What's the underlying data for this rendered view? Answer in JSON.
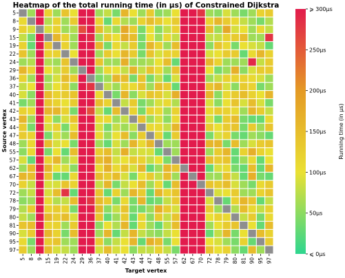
{
  "chart_data": {
    "type": "heatmap",
    "title": "Heatmap of the total running time (in μs) of Constrained Dijkstra",
    "xlabel": "Target vertex",
    "ylabel": "Source vertex",
    "colorbar_label": "Running time (in μs)",
    "colorbar_ticks": [
      "⩽ 0μs",
      "50μs",
      "100μs",
      "150μs",
      "200μs",
      "250μs",
      "⩾ 300μs"
    ],
    "colorbar_tick_values": [
      0,
      50,
      100,
      150,
      200,
      250,
      300
    ],
    "vmin": 0,
    "vmax": 300,
    "colors": {
      "min": "#2ed68f",
      "low": "#eae033",
      "mid": "#e49a25",
      "high": "#e21b4c",
      "diagonal": "#8e8e8e"
    },
    "x_categories": [
      "5",
      "8",
      "9",
      "15",
      "19",
      "22",
      "24",
      "29",
      "36",
      "37",
      "40",
      "41",
      "42",
      "43",
      "44",
      "47",
      "48",
      "55",
      "57",
      "62",
      "67",
      "70",
      "72",
      "78",
      "79",
      "80",
      "81",
      "90",
      "95",
      "97"
    ],
    "y_categories": [
      "5",
      "8",
      "9",
      "15",
      "19",
      "22",
      "24",
      "29",
      "36",
      "37",
      "40",
      "41",
      "42",
      "43",
      "44",
      "47",
      "48",
      "55",
      "57",
      "62",
      "67",
      "70",
      "72",
      "78",
      "79",
      "80",
      "81",
      "90",
      "95",
      "97"
    ],
    "values": [
      [
        null,
        60,
        300,
        120,
        60,
        140,
        100,
        300,
        300,
        60,
        80,
        40,
        160,
        100,
        60,
        130,
        50,
        60,
        100,
        300,
        300,
        280,
        60,
        50,
        90,
        60,
        40,
        60,
        120,
        130
      ],
      [
        110,
        null,
        300,
        70,
        120,
        60,
        130,
        300,
        300,
        120,
        30,
        110,
        70,
        60,
        120,
        150,
        130,
        100,
        130,
        300,
        300,
        300,
        120,
        160,
        130,
        110,
        80,
        60,
        40,
        70
      ],
      [
        120,
        90,
        null,
        90,
        120,
        60,
        70,
        260,
        300,
        150,
        80,
        60,
        180,
        130,
        40,
        100,
        50,
        80,
        120,
        300,
        300,
        300,
        150,
        60,
        180,
        90,
        100,
        60,
        110,
        80
      ],
      [
        80,
        40,
        300,
        null,
        160,
        120,
        60,
        300,
        290,
        60,
        130,
        100,
        170,
        150,
        40,
        100,
        60,
        110,
        80,
        300,
        300,
        300,
        80,
        80,
        120,
        130,
        150,
        60,
        60,
        280
      ],
      [
        120,
        30,
        300,
        140,
        null,
        120,
        60,
        300,
        300,
        160,
        40,
        110,
        80,
        130,
        40,
        160,
        120,
        60,
        150,
        300,
        300,
        300,
        50,
        140,
        110,
        40,
        100,
        90,
        80,
        30
      ],
      [
        140,
        60,
        300,
        120,
        120,
        null,
        100,
        300,
        300,
        60,
        130,
        100,
        160,
        130,
        40,
        140,
        90,
        120,
        120,
        300,
        300,
        300,
        90,
        100,
        130,
        130,
        30,
        110,
        160,
        120
      ],
      [
        60,
        70,
        300,
        70,
        60,
        140,
        null,
        300,
        300,
        140,
        60,
        60,
        170,
        60,
        60,
        70,
        100,
        150,
        30,
        300,
        300,
        300,
        160,
        120,
        60,
        60,
        60,
        290,
        80,
        130
      ],
      [
        160,
        120,
        300,
        100,
        80,
        130,
        60,
        null,
        300,
        60,
        110,
        100,
        80,
        160,
        80,
        140,
        110,
        60,
        140,
        300,
        300,
        300,
        100,
        40,
        60,
        170,
        50,
        90,
        130,
        130
      ],
      [
        120,
        60,
        300,
        60,
        90,
        150,
        130,
        300,
        null,
        40,
        60,
        160,
        150,
        40,
        140,
        40,
        80,
        30,
        90,
        300,
        300,
        300,
        60,
        80,
        120,
        120,
        120,
        110,
        90,
        60
      ],
      [
        80,
        100,
        300,
        70,
        100,
        130,
        50,
        300,
        280,
        null,
        80,
        60,
        120,
        110,
        140,
        60,
        150,
        130,
        30,
        300,
        300,
        300,
        140,
        160,
        90,
        50,
        130,
        120,
        40,
        60
      ],
      [
        90,
        50,
        300,
        150,
        120,
        130,
        140,
        300,
        300,
        110,
        null,
        40,
        160,
        50,
        90,
        140,
        130,
        90,
        170,
        300,
        300,
        300,
        160,
        50,
        110,
        130,
        150,
        120,
        100,
        160
      ],
      [
        40,
        60,
        300,
        140,
        120,
        100,
        130,
        300,
        300,
        150,
        120,
        null,
        80,
        130,
        40,
        60,
        90,
        110,
        70,
        300,
        300,
        300,
        90,
        50,
        100,
        140,
        90,
        150,
        90,
        40
      ],
      [
        120,
        110,
        300,
        160,
        160,
        120,
        40,
        300,
        260,
        80,
        30,
        150,
        null,
        120,
        40,
        120,
        110,
        60,
        120,
        300,
        300,
        300,
        110,
        130,
        120,
        110,
        60,
        160,
        130,
        80
      ],
      [
        160,
        60,
        300,
        110,
        50,
        90,
        140,
        300,
        300,
        110,
        110,
        60,
        80,
        null,
        140,
        60,
        90,
        50,
        110,
        300,
        300,
        300,
        90,
        40,
        130,
        150,
        40,
        30,
        30,
        110
      ],
      [
        130,
        40,
        300,
        90,
        120,
        40,
        110,
        300,
        300,
        90,
        40,
        80,
        60,
        80,
        null,
        110,
        110,
        80,
        160,
        300,
        300,
        300,
        130,
        100,
        130,
        140,
        40,
        130,
        60,
        140
      ],
      [
        130,
        120,
        300,
        40,
        90,
        60,
        150,
        300,
        300,
        110,
        60,
        100,
        150,
        50,
        130,
        null,
        120,
        30,
        130,
        300,
        300,
        300,
        40,
        90,
        120,
        40,
        30,
        60,
        50,
        30
      ],
      [
        60,
        110,
        300,
        150,
        90,
        100,
        40,
        300,
        300,
        60,
        30,
        90,
        60,
        160,
        110,
        160,
        null,
        60,
        60,
        300,
        300,
        300,
        160,
        160,
        40,
        150,
        60,
        90,
        130,
        140
      ],
      [
        50,
        110,
        300,
        40,
        100,
        30,
        150,
        300,
        300,
        130,
        150,
        80,
        170,
        80,
        90,
        90,
        30,
        null,
        60,
        300,
        300,
        300,
        60,
        130,
        160,
        30,
        120,
        170,
        120,
        100
      ],
      [
        90,
        30,
        300,
        120,
        160,
        60,
        90,
        300,
        300,
        150,
        170,
        90,
        100,
        130,
        120,
        80,
        100,
        40,
        null,
        300,
        300,
        300,
        150,
        130,
        140,
        30,
        60,
        110,
        30,
        100
      ],
      [
        60,
        150,
        300,
        160,
        100,
        90,
        50,
        300,
        300,
        110,
        170,
        110,
        140,
        90,
        160,
        30,
        60,
        160,
        140,
        null,
        300,
        300,
        30,
        90,
        110,
        40,
        30,
        150,
        30,
        160
      ],
      [
        160,
        150,
        300,
        140,
        30,
        30,
        110,
        300,
        300,
        150,
        130,
        150,
        90,
        40,
        100,
        130,
        80,
        150,
        60,
        300,
        null,
        300,
        60,
        60,
        140,
        80,
        30,
        170,
        40,
        30
      ],
      [
        120,
        80,
        300,
        90,
        90,
        140,
        120,
        300,
        300,
        80,
        160,
        40,
        80,
        100,
        150,
        60,
        110,
        30,
        150,
        300,
        300,
        null,
        140,
        130,
        150,
        90,
        60,
        40,
        110,
        130
      ],
      [
        60,
        80,
        300,
        90,
        150,
        280,
        30,
        300,
        300,
        140,
        30,
        120,
        60,
        160,
        130,
        30,
        160,
        120,
        140,
        300,
        300,
        300,
        null,
        90,
        100,
        130,
        60,
        60,
        120,
        140
      ],
      [
        50,
        60,
        300,
        110,
        70,
        80,
        150,
        300,
        280,
        150,
        130,
        40,
        110,
        40,
        160,
        30,
        40,
        80,
        130,
        300,
        300,
        300,
        90,
        null,
        30,
        120,
        160,
        140,
        30,
        80
      ],
      [
        70,
        130,
        300,
        120,
        130,
        120,
        40,
        300,
        300,
        160,
        50,
        80,
        140,
        40,
        40,
        60,
        170,
        130,
        90,
        300,
        300,
        300,
        130,
        60,
        null,
        70,
        150,
        110,
        80,
        120
      ],
      [
        80,
        60,
        300,
        160,
        130,
        150,
        90,
        300,
        300,
        140,
        30,
        60,
        130,
        30,
        110,
        50,
        130,
        80,
        140,
        300,
        300,
        300,
        100,
        120,
        110,
        null,
        80,
        130,
        40,
        110
      ],
      [
        140,
        150,
        300,
        120,
        120,
        60,
        130,
        300,
        300,
        50,
        100,
        70,
        160,
        30,
        110,
        60,
        30,
        80,
        150,
        300,
        300,
        300,
        60,
        100,
        130,
        140,
        null,
        100,
        30,
        150
      ],
      [
        90,
        130,
        300,
        160,
        120,
        40,
        150,
        300,
        300,
        60,
        160,
        30,
        80,
        160,
        80,
        60,
        50,
        80,
        100,
        300,
        300,
        300,
        30,
        80,
        160,
        40,
        100,
        null,
        150,
        120
      ],
      [
        110,
        40,
        300,
        130,
        140,
        60,
        60,
        300,
        300,
        130,
        50,
        80,
        100,
        160,
        30,
        170,
        150,
        40,
        100,
        300,
        300,
        300,
        100,
        90,
        60,
        40,
        120,
        30,
        null,
        130
      ],
      [
        130,
        60,
        300,
        150,
        90,
        80,
        60,
        300,
        300,
        90,
        150,
        90,
        100,
        50,
        80,
        80,
        120,
        80,
        40,
        300,
        300,
        300,
        140,
        100,
        120,
        50,
        30,
        150,
        60,
        null
      ]
    ]
  }
}
